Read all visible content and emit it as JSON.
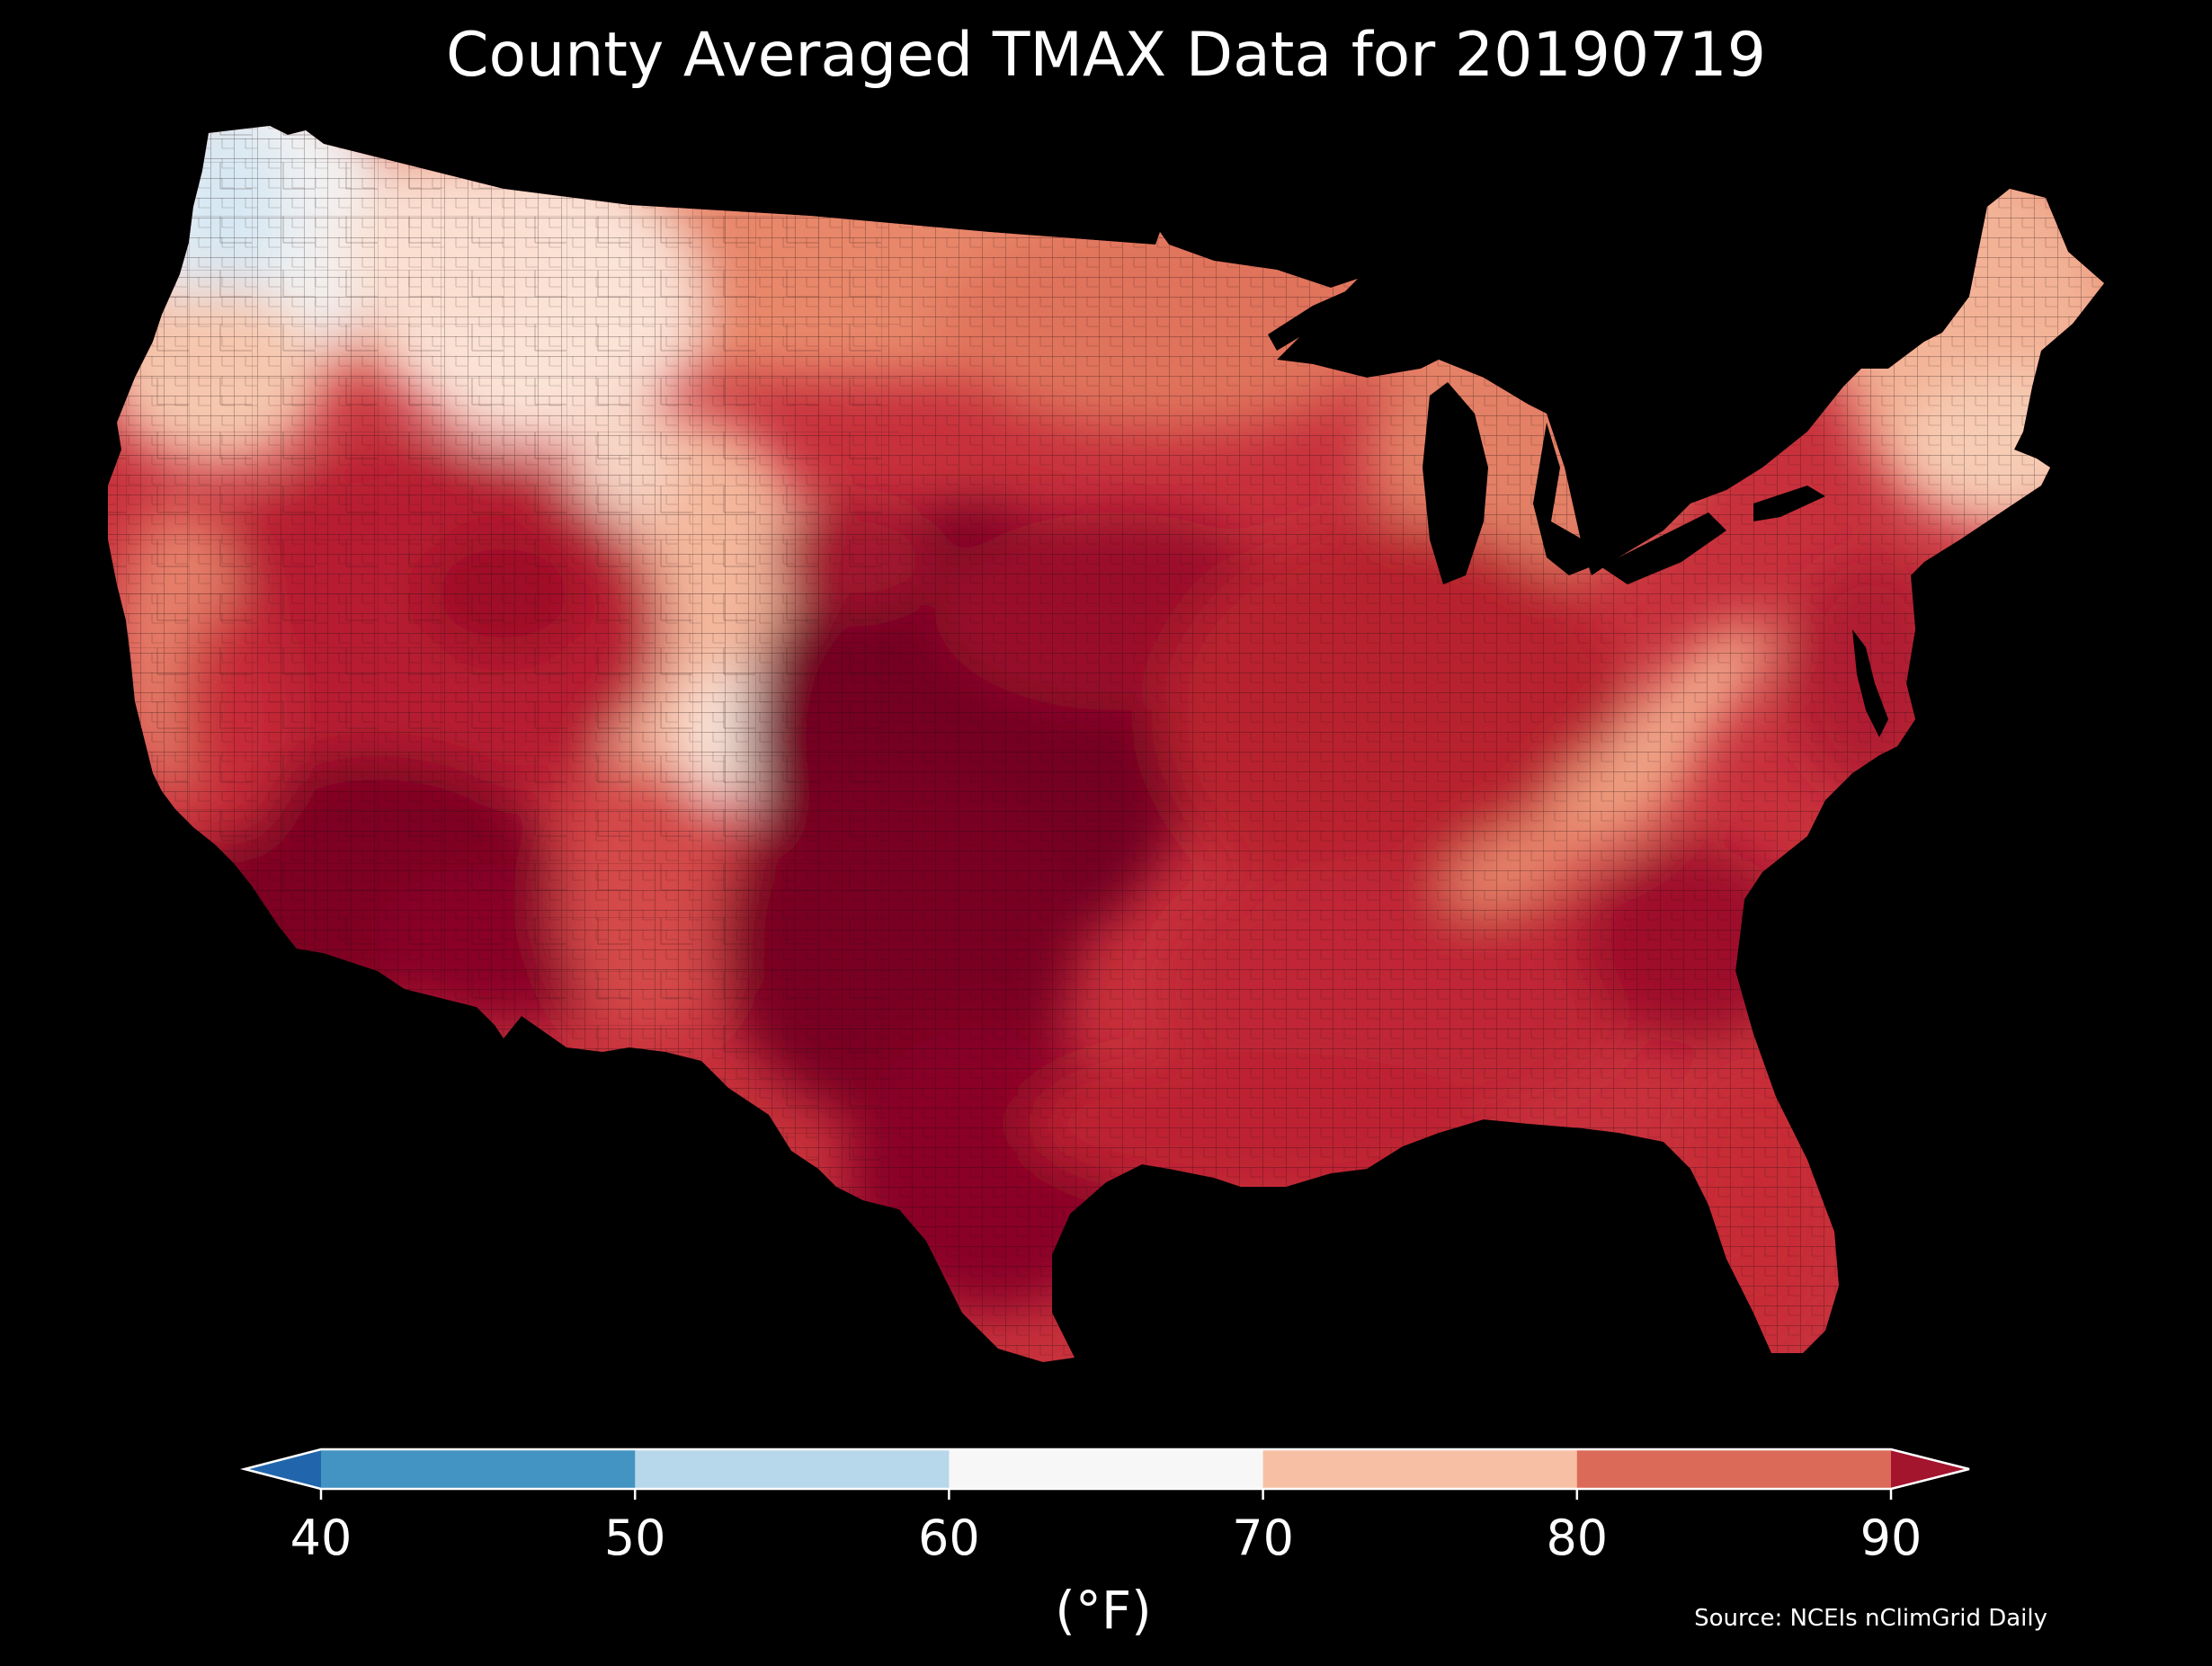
{
  "title": "County Averaged TMAX Data for 20190719",
  "map": {
    "region": "contiguous-united-states",
    "unit_level": "county",
    "variable": "TMAX",
    "date": "20190719",
    "regional_values_f": {
      "pacific-northwest-coast": 58,
      "northern-idaho-western-montana": 66,
      "northern-plains": 78,
      "upper-midwest": 79,
      "great-lakes": 80,
      "new-england-north": 72,
      "new-england-south": 76,
      "mid-atlantic": 86,
      "appalachians": 74,
      "southeast": 89,
      "florida": 88,
      "gulf-coast": 89,
      "texas": 93,
      "southern-plains": 95,
      "central-plains": 94,
      "desert-southwest": 95,
      "great-basin": 88,
      "colorado-rockies": 72,
      "california-coast": 76,
      "california-valley": 90
    }
  },
  "colorbar": {
    "ticks": [
      "40",
      "50",
      "60",
      "70",
      "80",
      "90"
    ],
    "bins": [
      {
        "range": "<40",
        "color": "#2166ac"
      },
      {
        "range": "40-50",
        "color": "#4393c3"
      },
      {
        "range": "50-60",
        "color": "#b7d7ea"
      },
      {
        "range": "60-70",
        "color": "#f7f7f7"
      },
      {
        "range": "70-80",
        "color": "#f7c0a4"
      },
      {
        "range": "80-90",
        "color": "#dc6a59"
      },
      {
        "range": ">90",
        "color": "#a3142d"
      }
    ],
    "extend": "both",
    "unit_label": "(°F)"
  },
  "source": "Source: NCEIs nClimGrid Daily"
}
